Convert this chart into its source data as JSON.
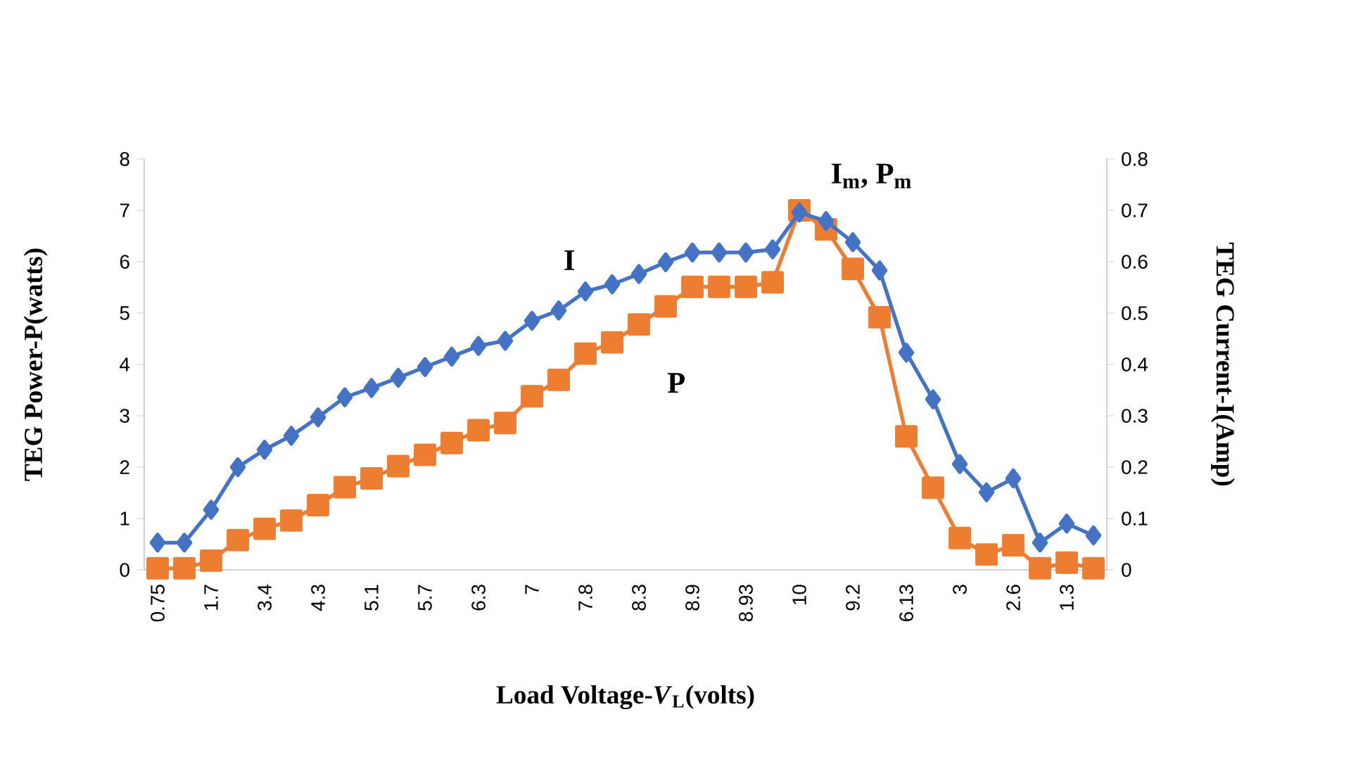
{
  "chart_data": {
    "type": "line",
    "xlabel": "Load Voltage-*V*$_{L}$(volts)",
    "ylabel": "TEG Power-P(watts)",
    "y2label": "TEG Current-I(Amp)",
    "categories": [
      "0.75",
      null,
      "1.7",
      null,
      "3.4",
      null,
      "4.3",
      null,
      "5.1",
      null,
      "5.7",
      null,
      "6.3",
      null,
      "7",
      null,
      "7.8",
      null,
      "8.3",
      null,
      "8.9",
      null,
      "8.93",
      null,
      "10",
      null,
      "9.2",
      null,
      "6.13",
      null,
      "3",
      null,
      "2.6",
      null,
      "1.3",
      null
    ],
    "series": [
      {
        "name": "P",
        "color": "#ed7d31",
        "marker": "square",
        "values": [
          0.03,
          0.03,
          0.18,
          0.58,
          0.8,
          0.96,
          1.26,
          1.61,
          1.78,
          2.02,
          2.24,
          2.47,
          2.72,
          2.86,
          3.38,
          3.7,
          4.21,
          4.43,
          4.78,
          5.13,
          5.51,
          5.51,
          5.51,
          5.6,
          7.0,
          6.63,
          5.86,
          4.92,
          2.6,
          1.6,
          0.62,
          0.3,
          0.48,
          0.03,
          0.14,
          0.03
        ]
      },
      {
        "name": "I",
        "color": "#4472c4",
        "marker": "diamond",
        "axis": "y2",
        "values": [
          0.053,
          0.053,
          0.117,
          0.2,
          0.234,
          0.261,
          0.297,
          0.336,
          0.354,
          0.374,
          0.395,
          0.415,
          0.436,
          0.446,
          0.485,
          0.505,
          0.542,
          0.556,
          0.576,
          0.599,
          0.618,
          0.618,
          0.618,
          0.624,
          0.696,
          0.679,
          0.638,
          0.583,
          0.423,
          0.332,
          0.206,
          0.151,
          0.178,
          0.053,
          0.09,
          0.067
        ]
      }
    ],
    "ylim": [
      0,
      8
    ],
    "yticks": [
      0,
      1,
      2,
      3,
      4,
      5,
      6,
      7,
      8
    ],
    "y2lim": [
      0,
      0.8
    ],
    "y2ticks": [
      {
        "value": 0,
        "label": "0"
      },
      {
        "value": 0.1,
        "label": "0.1"
      },
      {
        "value": 0.2,
        "label": "0.2"
      },
      {
        "value": 0.3,
        "label": "0.3"
      },
      {
        "value": 0.4,
        "label": "0.4"
      },
      {
        "value": 0.5,
        "label": "0.5"
      },
      {
        "value": 0.6,
        "label": "0.6"
      },
      {
        "value": 0.7,
        "label": "0.7"
      },
      {
        "value": 0.8,
        "label": "0.8"
      }
    ],
    "annotations": [
      "I$_{m}$, P$_{m}$"
    ],
    "line_style": "solid",
    "grid": false
  }
}
